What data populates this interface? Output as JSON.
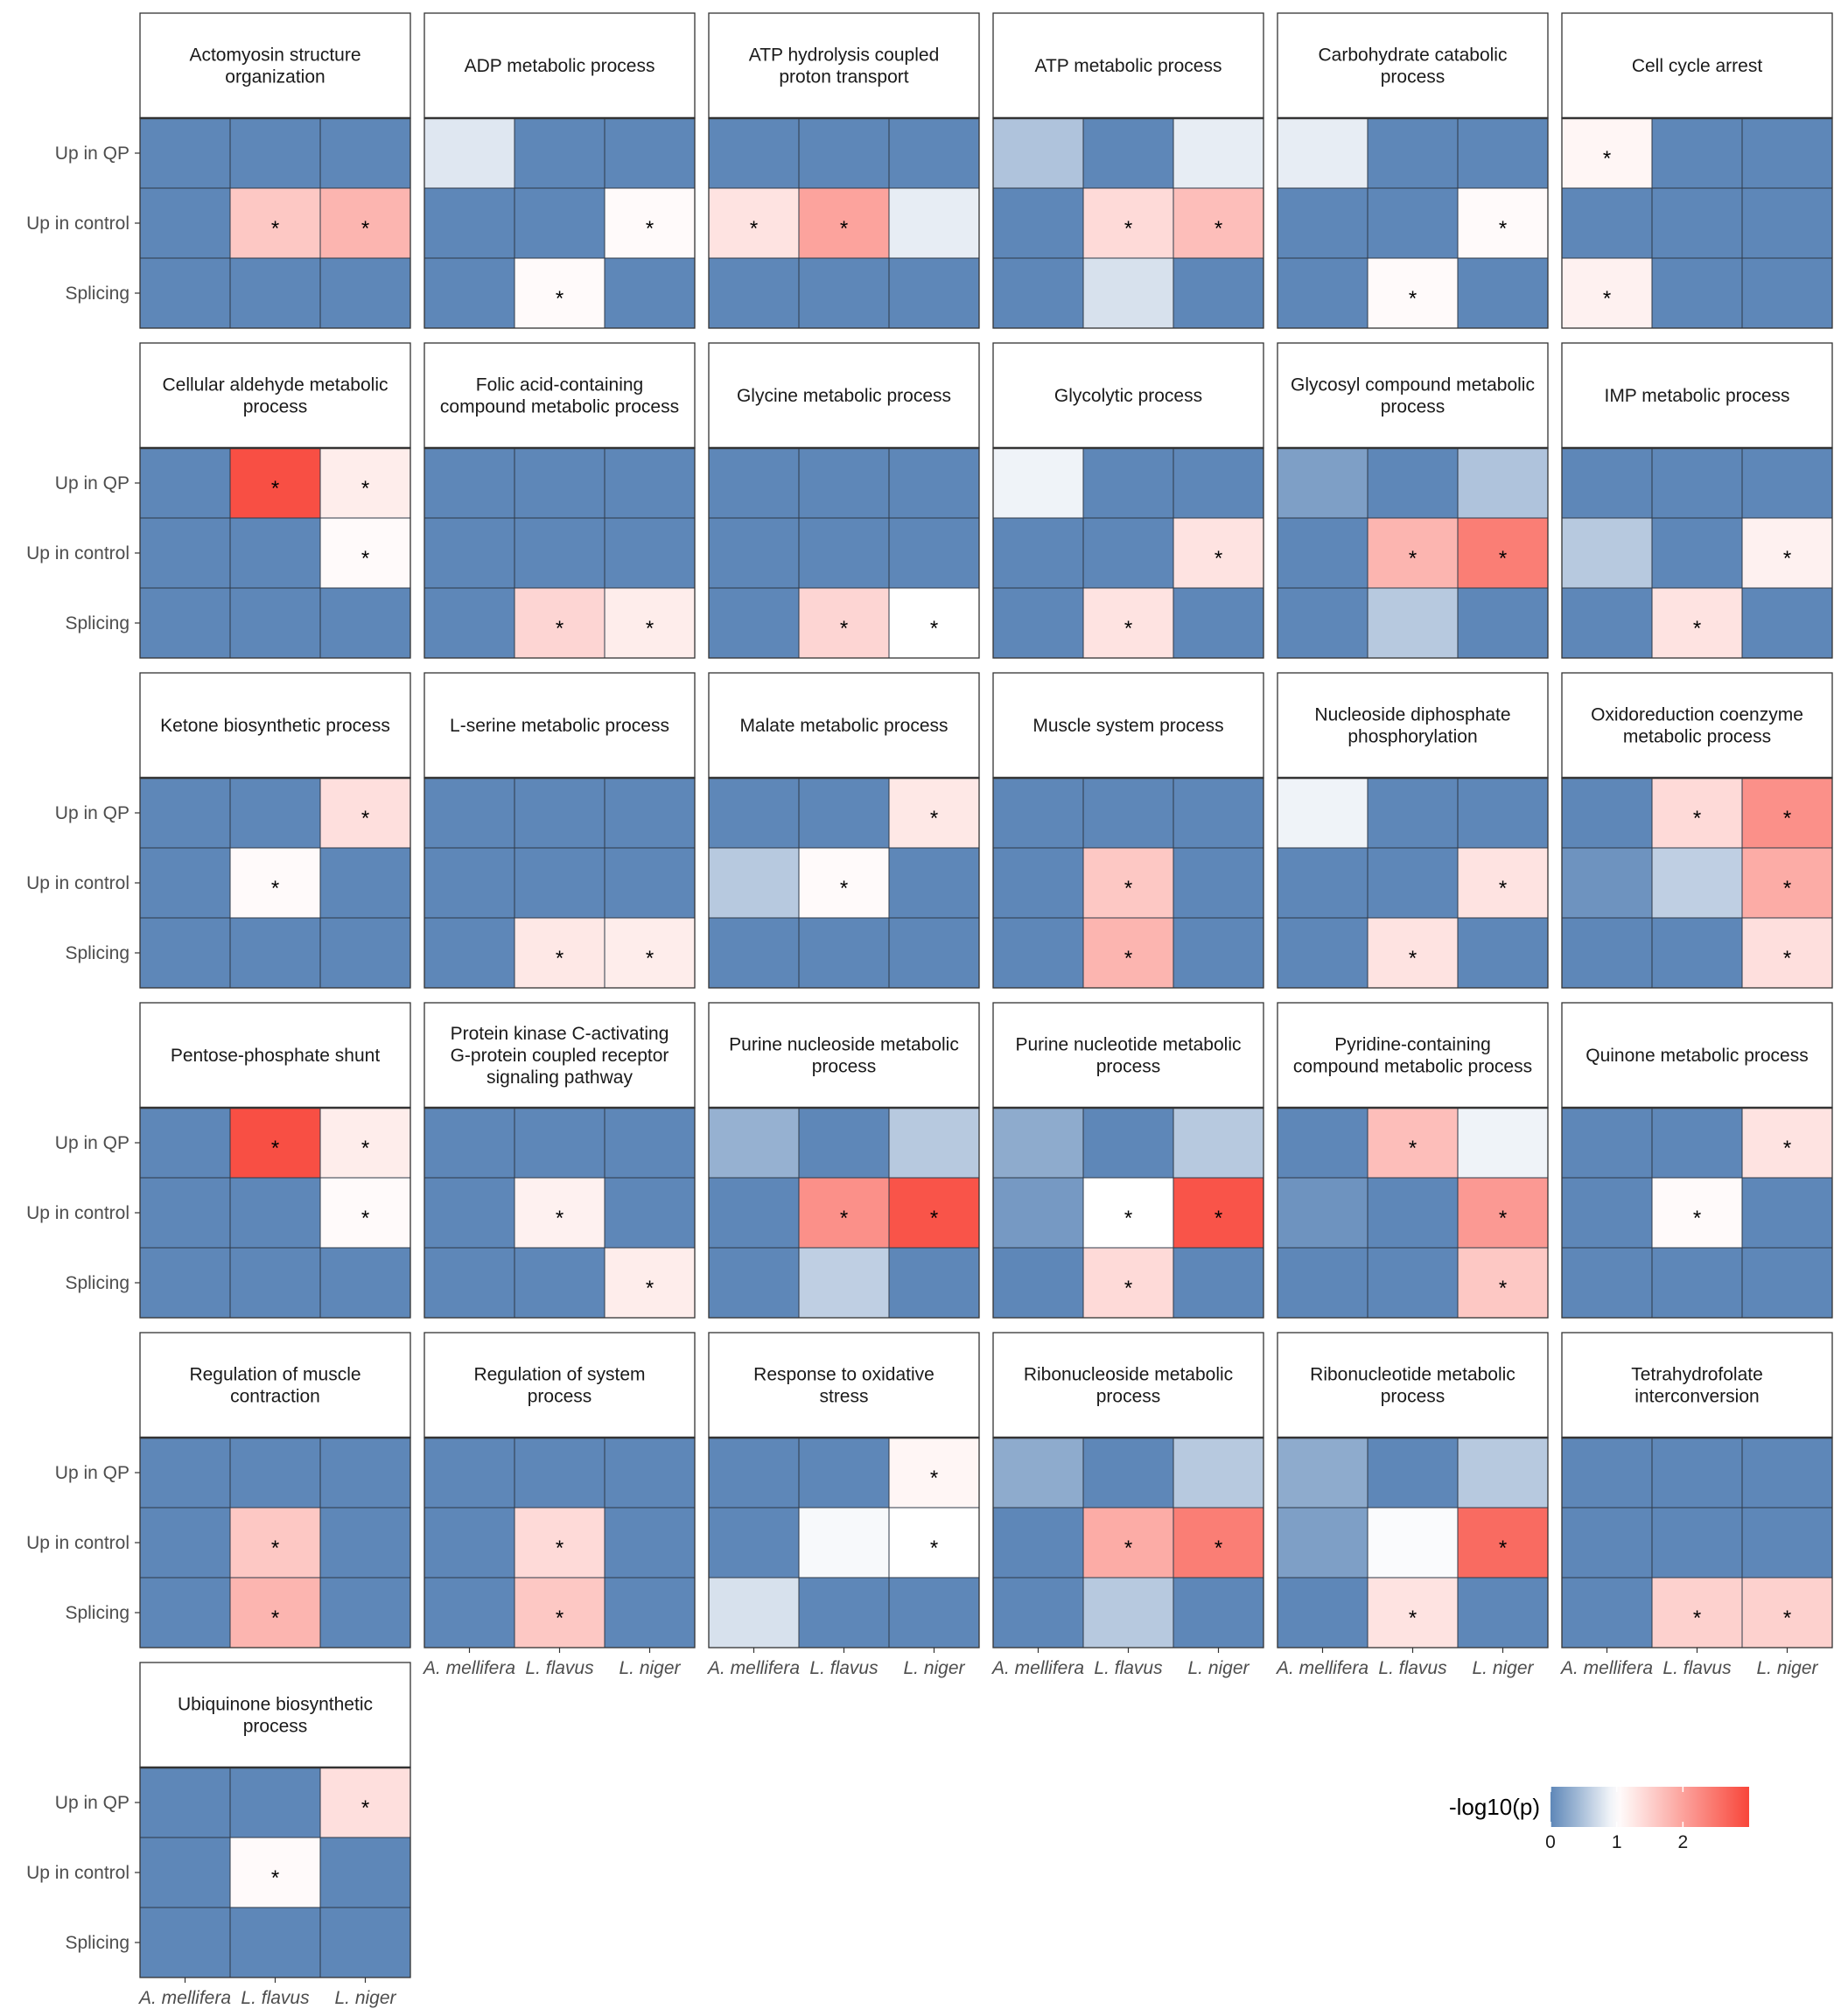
{
  "chart_data": {
    "type": "heatmap",
    "rows": [
      "Up in QP",
      "Up in control",
      "Splicing"
    ],
    "columns": [
      "A. mellifera",
      "L. flavus",
      "L. niger"
    ],
    "legend": {
      "title": "-log10(p)",
      "ticks": [
        0,
        1,
        2
      ],
      "range": [
        0,
        3
      ],
      "colors": {
        "low": "#5e87b8",
        "mid": "#ffffff",
        "high": "#f8463a"
      }
    },
    "significance_marker": "*",
    "panels": [
      {
        "title": "Actomyosin structure organization",
        "values": [
          [
            0,
            0,
            0
          ],
          [
            0,
            1.6,
            1.8
          ],
          [
            0,
            0,
            0
          ]
        ],
        "stars": [
          [
            0,
            0,
            0
          ],
          [
            0,
            1,
            1
          ],
          [
            0,
            0,
            0
          ]
        ]
      },
      {
        "title": "ADP metabolic process",
        "values": [
          [
            0.8,
            0,
            0
          ],
          [
            0,
            0,
            1.05
          ],
          [
            0,
            1.05,
            0
          ]
        ],
        "stars": [
          [
            0,
            0,
            0
          ],
          [
            0,
            0,
            1
          ],
          [
            0,
            1,
            0
          ]
        ]
      },
      {
        "title": "ATP hydrolysis coupled proton transport",
        "values": [
          [
            0,
            0,
            0
          ],
          [
            1.3,
            2.0,
            0.85
          ],
          [
            0,
            0,
            0
          ]
        ],
        "stars": [
          [
            0,
            0,
            0
          ],
          [
            1,
            1,
            0
          ],
          [
            0,
            0,
            0
          ]
        ]
      },
      {
        "title": "ATP metabolic process",
        "values": [
          [
            0.5,
            0,
            0.85
          ],
          [
            0,
            1.4,
            1.7
          ],
          [
            0,
            0.75,
            0
          ]
        ],
        "stars": [
          [
            0,
            0,
            0
          ],
          [
            0,
            1,
            1
          ],
          [
            0,
            0,
            0
          ]
        ]
      },
      {
        "title": "Carbohydrate catabolic process",
        "values": [
          [
            0.85,
            0,
            0
          ],
          [
            0,
            0,
            1.05
          ],
          [
            0,
            1.05,
            0
          ]
        ],
        "stars": [
          [
            0,
            0,
            0
          ],
          [
            0,
            0,
            1
          ],
          [
            0,
            1,
            0
          ]
        ]
      },
      {
        "title": "Cell cycle arrest",
        "values": [
          [
            1.1,
            0,
            0
          ],
          [
            0,
            0,
            0
          ],
          [
            1.15,
            0,
            0
          ]
        ],
        "stars": [
          [
            1,
            0,
            0
          ],
          [
            0,
            0,
            0
          ],
          [
            1,
            0,
            0
          ]
        ]
      },
      {
        "title": "Cellular aldehyde metabolic process",
        "values": [
          [
            0,
            2.9,
            1.2
          ],
          [
            0,
            0,
            1.05
          ],
          [
            0,
            0,
            0
          ]
        ],
        "stars": [
          [
            0,
            1,
            1
          ],
          [
            0,
            0,
            1
          ],
          [
            0,
            0,
            0
          ]
        ]
      },
      {
        "title": "Folic acid-containing compound metabolic process",
        "values": [
          [
            0,
            0,
            0
          ],
          [
            0,
            0,
            0
          ],
          [
            0,
            1.45,
            1.2
          ]
        ],
        "stars": [
          [
            0,
            0,
            0
          ],
          [
            0,
            0,
            0
          ],
          [
            0,
            1,
            1
          ]
        ]
      },
      {
        "title": "Glycine metabolic process",
        "values": [
          [
            0,
            0,
            0
          ],
          [
            0,
            0,
            0
          ],
          [
            0,
            1.45,
            1.0
          ]
        ],
        "stars": [
          [
            0,
            0,
            0
          ],
          [
            0,
            0,
            0
          ],
          [
            0,
            1,
            1
          ]
        ]
      },
      {
        "title": "Glycolytic process",
        "values": [
          [
            0.9,
            0,
            0
          ],
          [
            0,
            0,
            1.3
          ],
          [
            0,
            1.3,
            0
          ]
        ],
        "stars": [
          [
            0,
            0,
            0
          ],
          [
            0,
            0,
            1
          ],
          [
            0,
            1,
            0
          ]
        ]
      },
      {
        "title": "Glycosyl compound metabolic process",
        "values": [
          [
            0.2,
            0,
            0.5
          ],
          [
            0,
            1.8,
            2.4
          ],
          [
            0,
            0.55,
            0
          ]
        ],
        "stars": [
          [
            0,
            0,
            0
          ],
          [
            0,
            1,
            1
          ],
          [
            0,
            0,
            0
          ]
        ]
      },
      {
        "title": "IMP metabolic process",
        "values": [
          [
            0,
            0,
            0
          ],
          [
            0.55,
            0,
            1.15
          ],
          [
            0,
            1.3,
            0
          ]
        ],
        "stars": [
          [
            0,
            0,
            0
          ],
          [
            0,
            0,
            1
          ],
          [
            0,
            1,
            0
          ]
        ]
      },
      {
        "title": "Ketone biosynthetic process",
        "values": [
          [
            0,
            0,
            1.35
          ],
          [
            0,
            1.05,
            0
          ],
          [
            0,
            0,
            0
          ]
        ],
        "stars": [
          [
            0,
            0,
            1
          ],
          [
            0,
            1,
            0
          ],
          [
            0,
            0,
            0
          ]
        ]
      },
      {
        "title": "L-serine metabolic process",
        "values": [
          [
            0,
            0,
            0
          ],
          [
            0,
            0,
            0
          ],
          [
            0,
            1.25,
            1.2
          ]
        ],
        "stars": [
          [
            0,
            0,
            0
          ],
          [
            0,
            0,
            0
          ],
          [
            0,
            1,
            1
          ]
        ]
      },
      {
        "title": "Malate metabolic process",
        "values": [
          [
            0,
            0,
            1.25
          ],
          [
            0.55,
            1.05,
            0
          ],
          [
            0,
            0,
            0
          ]
        ],
        "stars": [
          [
            0,
            0,
            1
          ],
          [
            0,
            1,
            0
          ],
          [
            0,
            0,
            0
          ]
        ]
      },
      {
        "title": "Muscle system process",
        "values": [
          [
            0,
            0,
            0
          ],
          [
            0,
            1.6,
            0
          ],
          [
            0,
            1.8,
            0
          ]
        ],
        "stars": [
          [
            0,
            0,
            0
          ],
          [
            0,
            1,
            0
          ],
          [
            0,
            1,
            0
          ]
        ]
      },
      {
        "title": "Nucleoside diphosphate phosphorylation",
        "values": [
          [
            0.9,
            0,
            0
          ],
          [
            0,
            0,
            1.3
          ],
          [
            0,
            1.3,
            0
          ]
        ],
        "stars": [
          [
            0,
            0,
            0
          ],
          [
            0,
            0,
            1
          ],
          [
            0,
            1,
            0
          ]
        ]
      },
      {
        "title": "Oxidoreduction coenzyme metabolic process",
        "values": [
          [
            0,
            1.4,
            2.2
          ],
          [
            0.1,
            0.6,
            1.9
          ],
          [
            0,
            0,
            1.35
          ]
        ],
        "stars": [
          [
            0,
            1,
            1
          ],
          [
            0,
            0,
            1
          ],
          [
            0,
            0,
            1
          ]
        ]
      },
      {
        "title": "Pentose-phosphate shunt",
        "values": [
          [
            0,
            2.9,
            1.2
          ],
          [
            0,
            0,
            1.05
          ],
          [
            0,
            0,
            0
          ]
        ],
        "stars": [
          [
            0,
            1,
            1
          ],
          [
            0,
            0,
            1
          ],
          [
            0,
            0,
            0
          ]
        ]
      },
      {
        "title": "Protein kinase C-activating G-protein coupled receptor signaling pathway",
        "values": [
          [
            0,
            0,
            0
          ],
          [
            0,
            1.15,
            0
          ],
          [
            0,
            0,
            1.2
          ]
        ],
        "stars": [
          [
            0,
            0,
            0
          ],
          [
            0,
            1,
            0
          ],
          [
            0,
            0,
            1
          ]
        ]
      },
      {
        "title": "Purine nucleoside metabolic process",
        "values": [
          [
            0.35,
            0,
            0.55
          ],
          [
            0,
            2.2,
            2.85
          ],
          [
            0,
            0.6,
            0
          ]
        ],
        "stars": [
          [
            0,
            0,
            0
          ],
          [
            0,
            1,
            1
          ],
          [
            0,
            0,
            0
          ]
        ]
      },
      {
        "title": "Purine nucleotide metabolic process",
        "values": [
          [
            0.3,
            0,
            0.55
          ],
          [
            0.15,
            1.0,
            2.85
          ],
          [
            0,
            1.4,
            0
          ]
        ],
        "stars": [
          [
            0,
            0,
            0
          ],
          [
            0,
            1,
            1
          ],
          [
            0,
            1,
            0
          ]
        ]
      },
      {
        "title": "Pyridine-containing compound metabolic process",
        "values": [
          [
            0,
            1.7,
            0.9
          ],
          [
            0.1,
            0,
            2.1
          ],
          [
            0,
            0,
            1.6
          ]
        ],
        "stars": [
          [
            0,
            1,
            0
          ],
          [
            0,
            0,
            1
          ],
          [
            0,
            0,
            1
          ]
        ]
      },
      {
        "title": "Quinone metabolic process",
        "values": [
          [
            0,
            0,
            1.3
          ],
          [
            0,
            1.05,
            0
          ],
          [
            0,
            0,
            0
          ]
        ],
        "stars": [
          [
            0,
            0,
            1
          ],
          [
            0,
            1,
            0
          ],
          [
            0,
            0,
            0
          ]
        ]
      },
      {
        "title": "Regulation of muscle contraction",
        "values": [
          [
            0,
            0,
            0
          ],
          [
            0,
            1.6,
            0
          ],
          [
            0,
            1.8,
            0
          ]
        ],
        "stars": [
          [
            0,
            0,
            0
          ],
          [
            0,
            1,
            0
          ],
          [
            0,
            1,
            0
          ]
        ]
      },
      {
        "title": "Regulation of system process",
        "values": [
          [
            0,
            0,
            0
          ],
          [
            0,
            1.4,
            0
          ],
          [
            0,
            1.6,
            0
          ]
        ],
        "stars": [
          [
            0,
            0,
            0
          ],
          [
            0,
            1,
            0
          ],
          [
            0,
            1,
            0
          ]
        ]
      },
      {
        "title": "Response to oxidative stress",
        "values": [
          [
            0,
            0,
            1.1
          ],
          [
            0,
            0.95,
            1.0
          ],
          [
            0.75,
            0,
            0
          ]
        ],
        "stars": [
          [
            0,
            0,
            1
          ],
          [
            0,
            0,
            1
          ],
          [
            0,
            0,
            0
          ]
        ]
      },
      {
        "title": "Ribonucleoside metabolic process",
        "values": [
          [
            0.3,
            0,
            0.55
          ],
          [
            0,
            1.9,
            2.4
          ],
          [
            0,
            0.55,
            0
          ]
        ],
        "stars": [
          [
            0,
            0,
            0
          ],
          [
            0,
            1,
            1
          ],
          [
            0,
            0,
            0
          ]
        ]
      },
      {
        "title": "Ribonucleotide metabolic process",
        "values": [
          [
            0.3,
            0,
            0.55
          ],
          [
            0.2,
            0.97,
            2.6
          ],
          [
            0,
            1.3,
            0
          ]
        ],
        "stars": [
          [
            0,
            0,
            0
          ],
          [
            0,
            0,
            1
          ],
          [
            0,
            1,
            0
          ]
        ]
      },
      {
        "title": "Tetrahydrofolate interconversion",
        "values": [
          [
            0,
            0,
            0
          ],
          [
            0,
            0,
            0
          ],
          [
            0,
            1.5,
            1.5
          ]
        ],
        "stars": [
          [
            0,
            0,
            0
          ],
          [
            0,
            0,
            0
          ],
          [
            0,
            1,
            1
          ]
        ]
      },
      {
        "title": "Ubiquinone biosynthetic process",
        "values": [
          [
            0,
            0,
            1.35
          ],
          [
            0,
            1.05,
            0
          ],
          [
            0,
            0,
            0
          ]
        ],
        "stars": [
          [
            0,
            0,
            1
          ],
          [
            0,
            1,
            0
          ],
          [
            0,
            0,
            0
          ]
        ]
      }
    ]
  }
}
